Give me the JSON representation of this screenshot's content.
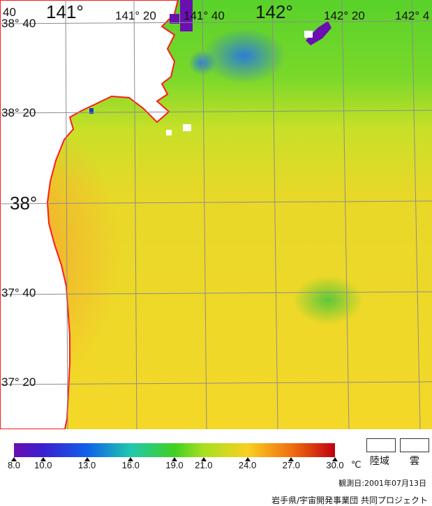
{
  "map": {
    "latitude_labels": [
      "38° 40",
      "38° 20",
      "38°",
      "37° 40",
      "37° 20"
    ],
    "longitude_labels": [
      "141°",
      "141° 20",
      "141° 40",
      "142°",
      "142° 20",
      "142° 4"
    ],
    "corner_label": "40",
    "colors": {
      "land": "#ffffff",
      "coast": "#ff1a1a",
      "grid": "#8c8c8c",
      "cloud": "#ffffff"
    }
  },
  "legend": {
    "title_unit": "℃",
    "scale_min": 8.0,
    "scale_max": 30.0,
    "tick_values": [
      8.0,
      10.0,
      13.0,
      16.0,
      19.0,
      21.0,
      24.0,
      27.0,
      30.0
    ],
    "tick_labels": [
      "8.0",
      "10.0",
      "13.0",
      "16.0",
      "19.0",
      "21.0",
      "24.0",
      "27.0",
      "30.0"
    ],
    "color_stops": [
      {
        "value": 8.0,
        "color": "#6a0fb0"
      },
      {
        "value": 10.0,
        "color": "#3a1fd0"
      },
      {
        "value": 13.0,
        "color": "#1060e8"
      },
      {
        "value": 16.0,
        "color": "#20c8b0"
      },
      {
        "value": 19.0,
        "color": "#40d020"
      },
      {
        "value": 21.0,
        "color": "#a8e020"
      },
      {
        "value": 24.0,
        "color": "#f8d020"
      },
      {
        "value": 27.0,
        "color": "#f07010"
      },
      {
        "value": 30.0,
        "color": "#c00010"
      }
    ],
    "swatches": [
      {
        "label": "陸域",
        "color": "#ffffff"
      },
      {
        "label": "雲",
        "color": "#ffffff"
      }
    ]
  },
  "observation": {
    "date_text": "観測日:2001年07月13日"
  },
  "credit": {
    "text": "岩手県/宇宙開発事業団 共同プロジェクト"
  }
}
